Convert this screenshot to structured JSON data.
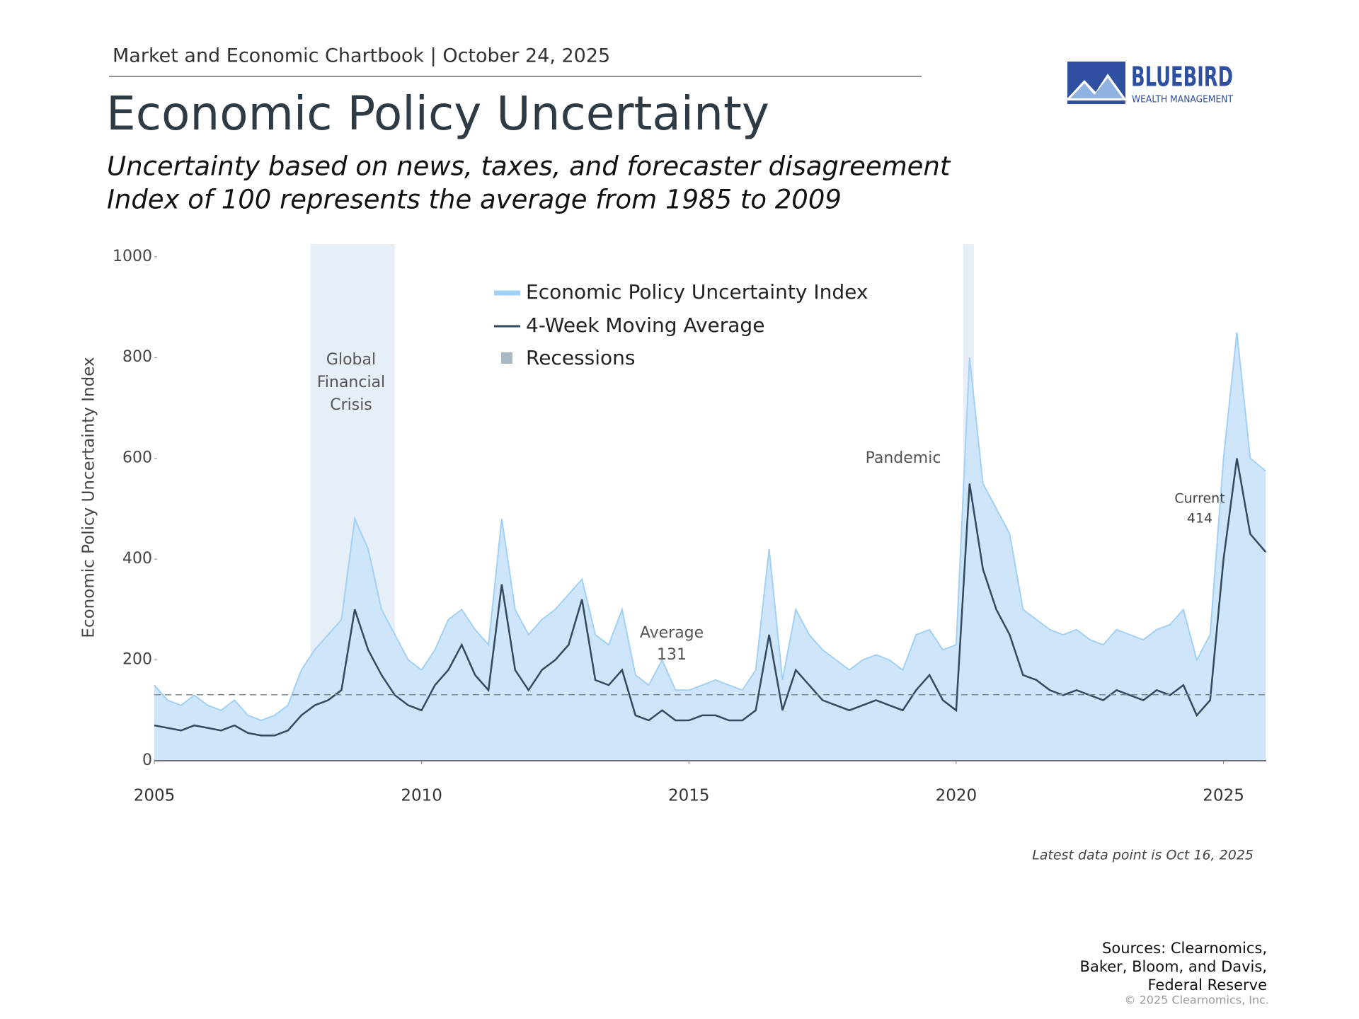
{
  "header": "Market and Economic Chartbook | October 24, 2025",
  "logo": {
    "name": "BLUEBIRD",
    "tagline": "WEALTH MANAGEMENT"
  },
  "chart_data": {
    "type": "line",
    "title": "Economic Policy Uncertainty",
    "subtitle": [
      "Uncertainty based on news, taxes, and forecaster disagreement",
      "Index of 100 represents the average from 1985 to 2009"
    ],
    "y_label": "Economic Policy Uncertainty Index",
    "x": [
      2005,
      2005.25,
      2005.5,
      2005.75,
      2006,
      2006.25,
      2006.5,
      2006.75,
      2007,
      2007.25,
      2007.5,
      2007.75,
      2008,
      2008.25,
      2008.5,
      2008.75,
      2009,
      2009.25,
      2009.5,
      2009.75,
      2010,
      2010.25,
      2010.5,
      2010.75,
      2011,
      2011.25,
      2011.5,
      2011.75,
      2012,
      2012.25,
      2012.5,
      2012.75,
      2013,
      2013.25,
      2013.5,
      2013.75,
      2014,
      2014.25,
      2014.5,
      2014.75,
      2015,
      2015.25,
      2015.5,
      2015.75,
      2016,
      2016.25,
      2016.5,
      2016.75,
      2017,
      2017.25,
      2017.5,
      2017.75,
      2018,
      2018.25,
      2018.5,
      2018.75,
      2019,
      2019.25,
      2019.5,
      2019.75,
      2020,
      2020.25,
      2020.5,
      2020.75,
      2021,
      2021.25,
      2021.5,
      2021.75,
      2022,
      2022.25,
      2022.5,
      2022.75,
      2023,
      2023.25,
      2023.5,
      2023.75,
      2024,
      2024.25,
      2024.5,
      2024.75,
      2025,
      2025.25,
      2025.5,
      2025.79
    ],
    "series": [
      {
        "name": "Economic Policy Uncertainty Index",
        "color": "#a3d0f5",
        "fill": "#cfe6fa",
        "values": [
          150,
          120,
          110,
          130,
          110,
          100,
          120,
          90,
          80,
          90,
          110,
          180,
          220,
          250,
          280,
          480,
          420,
          300,
          250,
          200,
          180,
          220,
          280,
          300,
          260,
          230,
          480,
          300,
          250,
          280,
          300,
          330,
          360,
          250,
          230,
          300,
          170,
          150,
          200,
          140,
          140,
          150,
          160,
          150,
          140,
          180,
          420,
          160,
          300,
          250,
          220,
          200,
          180,
          200,
          210,
          200,
          180,
          250,
          260,
          220,
          230,
          800,
          550,
          500,
          450,
          300,
          280,
          260,
          250,
          260,
          240,
          230,
          260,
          250,
          240,
          260,
          270,
          300,
          200,
          250,
          600,
          850,
          600,
          575
        ]
      },
      {
        "name": "4-Week Moving Average",
        "color": "#34495e",
        "values": [
          70,
          65,
          60,
          70,
          65,
          60,
          70,
          55,
          50,
          50,
          60,
          90,
          110,
          120,
          140,
          300,
          220,
          170,
          130,
          110,
          100,
          150,
          180,
          230,
          170,
          140,
          350,
          180,
          140,
          180,
          200,
          230,
          320,
          160,
          150,
          180,
          90,
          80,
          100,
          80,
          80,
          90,
          90,
          80,
          80,
          100,
          250,
          100,
          180,
          150,
          120,
          110,
          100,
          110,
          120,
          110,
          100,
          140,
          170,
          120,
          100,
          550,
          380,
          300,
          250,
          170,
          160,
          140,
          130,
          140,
          130,
          120,
          140,
          130,
          120,
          140,
          130,
          150,
          90,
          120,
          400,
          600,
          450,
          414
        ]
      }
    ],
    "recessions": {
      "name": "Recessions",
      "color": "#a9b9c4",
      "band_color": "#e6eef8",
      "periods": [
        [
          2007.92,
          2009.5
        ],
        [
          2020.13,
          2020.33
        ]
      ]
    },
    "average": {
      "label": "Average",
      "value": 131
    },
    "current": {
      "label": "Current",
      "value": 414
    },
    "annotations": [
      {
        "lines": [
          "Global",
          "Financial",
          "Crisis"
        ]
      },
      {
        "lines": [
          "Pandemic"
        ]
      }
    ],
    "xlim": [
      2005,
      2025.8
    ],
    "xticks": [
      2005,
      2010,
      2015,
      2020,
      2025
    ],
    "ylim": [
      0,
      1025
    ],
    "yticks": [
      0,
      200,
      400,
      600,
      800,
      1000
    ]
  },
  "footnote": "Latest data point is Oct 16, 2025",
  "sources": [
    "Sources: Clearnomics,",
    "Baker, Bloom, and Davis,",
    "Federal Reserve"
  ],
  "copyright": "© 2025 Clearnomics, Inc."
}
